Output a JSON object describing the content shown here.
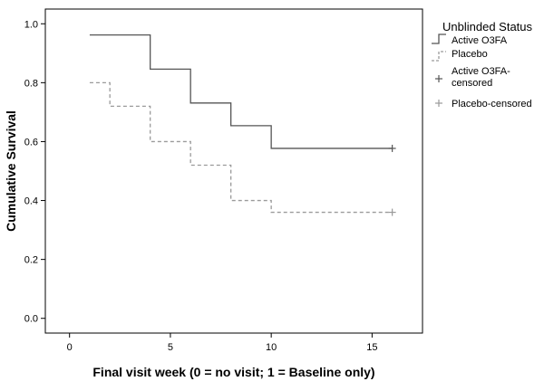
{
  "chart_data": {
    "type": "line",
    "xlabel": "Final visit week (0 = no visit; 1 = Baseline only)",
    "ylabel": "Cumulative Survival",
    "xlim": [
      -1.2,
      17.5
    ],
    "ylim": [
      -0.05,
      1.05
    ],
    "x_ticks": [
      0,
      5,
      10,
      15
    ],
    "y_ticks": [
      0.0,
      0.2,
      0.4,
      0.6,
      0.8,
      1.0
    ],
    "x_tick_labels": [
      "0",
      "5",
      "10",
      "15"
    ],
    "y_tick_labels": [
      "0.0",
      "0.2",
      "0.4",
      "0.6",
      "0.8",
      "1.0"
    ],
    "grid": false,
    "legend_title": "Unblinded Status",
    "legend_position": "right",
    "series": [
      {
        "name": "Active O3FA",
        "style": "solid",
        "color": "#555555",
        "steps": [
          [
            1,
            0.962
          ],
          [
            4,
            0.846
          ],
          [
            6,
            0.731
          ],
          [
            8,
            0.654
          ],
          [
            10,
            0.577
          ],
          [
            16,
            0.577
          ]
        ],
        "censored": [
          [
            16,
            0.577
          ]
        ]
      },
      {
        "name": "Placebo",
        "style": "dashed",
        "color": "#9a9a9a",
        "steps": [
          [
            1,
            0.8
          ],
          [
            2,
            0.72
          ],
          [
            4,
            0.6
          ],
          [
            6,
            0.52
          ],
          [
            8,
            0.4
          ],
          [
            10,
            0.36
          ],
          [
            16,
            0.36
          ]
        ],
        "censored": [
          [
            16,
            0.36
          ]
        ]
      }
    ],
    "legend_entries": [
      {
        "label": "Active O3FA",
        "kind": "line",
        "style": "solid",
        "color": "#555555"
      },
      {
        "label": "Placebo",
        "kind": "line",
        "style": "dashed",
        "color": "#9a9a9a"
      },
      {
        "label": "Active O3FA-censored",
        "kind": "marker",
        "color": "#555555"
      },
      {
        "label": "Placebo-censored",
        "kind": "marker",
        "color": "#9a9a9a"
      }
    ]
  }
}
